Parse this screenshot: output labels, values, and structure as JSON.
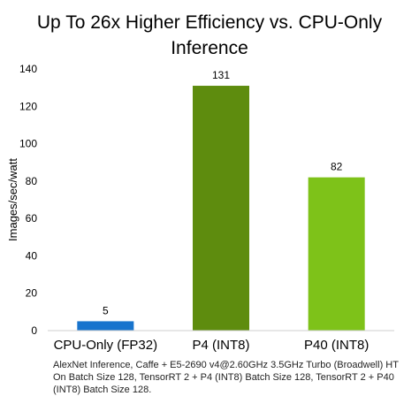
{
  "chart_data": {
    "type": "bar",
    "title": "Up To 26x Higher Efficiency vs. CPU-Only Inference",
    "title_lines": [
      "Up To 26x Higher Efficiency vs. CPU-Only",
      "Inference"
    ],
    "ylabel": "Images/sec/watt",
    "xlabel": "",
    "ylim": [
      0,
      140
    ],
    "yticks": [
      0,
      20,
      40,
      60,
      80,
      100,
      120,
      140
    ],
    "grid": false,
    "legend": "none",
    "categories": [
      "CPU-Only (FP32)",
      "P4 (INT8)",
      "P40 (INT8)"
    ],
    "values": [
      5,
      131,
      82
    ],
    "data_labels": [
      "5",
      "131",
      "82"
    ],
    "colors": [
      "#1874cd",
      "#5e8c0e",
      "#7ec219"
    ]
  },
  "footnote": "AlexNet Inference, Caffe + E5-2690 v4@2.60GHz 3.5GHz Turbo (Broadwell) HT On Batch Size 128, TensorRT 2 + P4 (INT8) Batch Size 128, TensorRT 2 + P40 (INT8) Batch Size 128."
}
